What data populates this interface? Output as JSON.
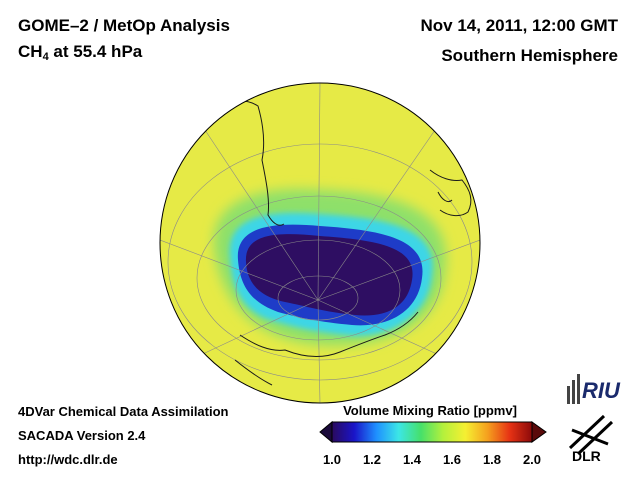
{
  "header": {
    "title_line1": "GOME–2 / MetOp Analysis",
    "species": "CH",
    "species_sub": "4",
    "level": " at 55.4 hPa",
    "datetime": "Nov 14, 2011, 12:00 GMT",
    "hemisphere": "Southern Hemisphere"
  },
  "footer": {
    "line1": "4DVar Chemical Data Assimilation",
    "line2": "SACADA Version 2.4",
    "line3": "http://wdc.dlr.de"
  },
  "colorbar": {
    "title": "Volume Mixing Ratio [ppmv]",
    "ticks": [
      "1.0",
      "1.2",
      "1.4",
      "1.6",
      "1.8",
      "2.0"
    ],
    "min": 1.0,
    "max": 2.0,
    "colors": [
      "#2a0a5e",
      "#1a14c8",
      "#1e90ff",
      "#3ce6e6",
      "#46e06a",
      "#b4f03c",
      "#f5f032",
      "#f5a01e",
      "#e63214",
      "#8c0a0a"
    ]
  },
  "logos": {
    "riu": "RIU",
    "dlr": "DLR"
  },
  "map": {
    "projection": "orthographic",
    "region": "Antarctica / Southern Ocean",
    "field_colors": {
      "background": "#e6ea46",
      "green": "#8ee06a",
      "cyan": "#3cd6e6",
      "blue": "#1e3cc8",
      "vortex": "#2e0e62"
    }
  }
}
